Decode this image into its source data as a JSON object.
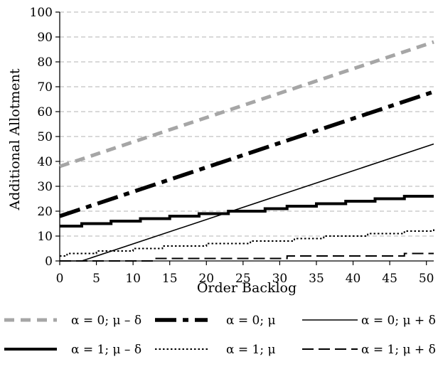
{
  "chart_data": {
    "type": "line",
    "xlabel": "Order Backlog",
    "ylabel": "Additional Allotment",
    "xlim": [
      0,
      51
    ],
    "ylim": [
      0,
      100
    ],
    "x_ticks": [
      0,
      5,
      10,
      15,
      20,
      25,
      30,
      35,
      40,
      45,
      50
    ],
    "y_ticks": [
      0,
      10,
      20,
      30,
      40,
      50,
      60,
      70,
      80,
      90,
      100
    ],
    "grid": "horizontal dashed",
    "legend_position": "bottom",
    "series": [
      {
        "name": "α = 0; μ – δ",
        "color": "#a6a6a6",
        "style": "thick-dash",
        "x": [
          0,
          51
        ],
        "y": [
          38,
          88
        ]
      },
      {
        "name": "α = 0; μ",
        "color": "#000000",
        "style": "thick-dashdot",
        "x": [
          0,
          51
        ],
        "y": [
          18,
          68
        ]
      },
      {
        "name": "α = 0; μ + δ",
        "color": "#000000",
        "style": "thin-solid",
        "x": [
          0,
          3,
          51
        ],
        "y": [
          0,
          0,
          47
        ]
      },
      {
        "name": "α = 1; μ – δ",
        "color": "#000000",
        "style": "thick-solid-step",
        "x": [
          0,
          3,
          7,
          11,
          15,
          19,
          23,
          28,
          31,
          35,
          39,
          43,
          47,
          51
        ],
        "y": [
          14,
          15,
          16,
          17,
          18,
          19,
          20,
          21,
          22,
          23,
          24,
          25,
          26,
          26
        ]
      },
      {
        "name": "α = 1; μ",
        "color": "#000000",
        "style": "dotted-step",
        "x": [
          0,
          1,
          5,
          10,
          14,
          20,
          26,
          32,
          36,
          42,
          47,
          51
        ],
        "y": [
          2,
          3,
          4,
          5,
          6,
          7,
          8,
          9,
          10,
          11,
          12,
          13
        ]
      },
      {
        "name": "α = 1; μ + δ",
        "color": "#000000",
        "style": "dash-step",
        "x": [
          0,
          13,
          31,
          47,
          51
        ],
        "y": [
          0,
          1,
          2,
          3,
          3
        ]
      }
    ]
  }
}
